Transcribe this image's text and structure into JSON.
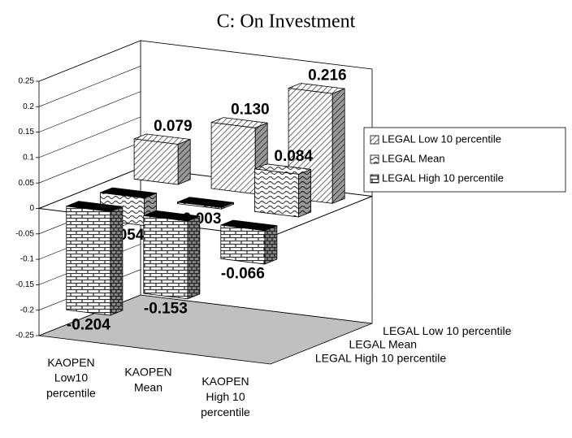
{
  "chart_data": {
    "type": "bar3d",
    "title": "C: On Investment",
    "categories": [
      "KAOPEN\nLow10\npercentile",
      "KAOPEN\nMean",
      "KAOPEN\nHigh 10\npercentile"
    ],
    "series": [
      {
        "name": "LEGAL Low 10 percentile",
        "hatch": "diagonal",
        "values": [
          0.079,
          0.13,
          0.216
        ],
        "value_labels": [
          "0.079",
          "0.130",
          "0.216"
        ]
      },
      {
        "name": "LEGAL Mean",
        "hatch": "wave",
        "values": [
          -0.054,
          -0.003,
          0.084
        ],
        "value_labels": [
          "-0.054",
          "-0.003",
          "0.084"
        ]
      },
      {
        "name": "LEGAL High 10 percentile",
        "hatch": "brick",
        "values": [
          -0.204,
          -0.153,
          -0.066
        ],
        "value_labels": [
          "-0.204",
          "-0.153",
          "-0.066"
        ]
      }
    ],
    "ylim": [
      -0.25,
      0.25
    ],
    "yticks": [
      -0.25,
      -0.2,
      -0.15,
      -0.1,
      -0.05,
      0,
      0.05,
      0.1,
      0.15,
      0.2,
      0.25
    ],
    "grid": true,
    "legend": "right"
  }
}
